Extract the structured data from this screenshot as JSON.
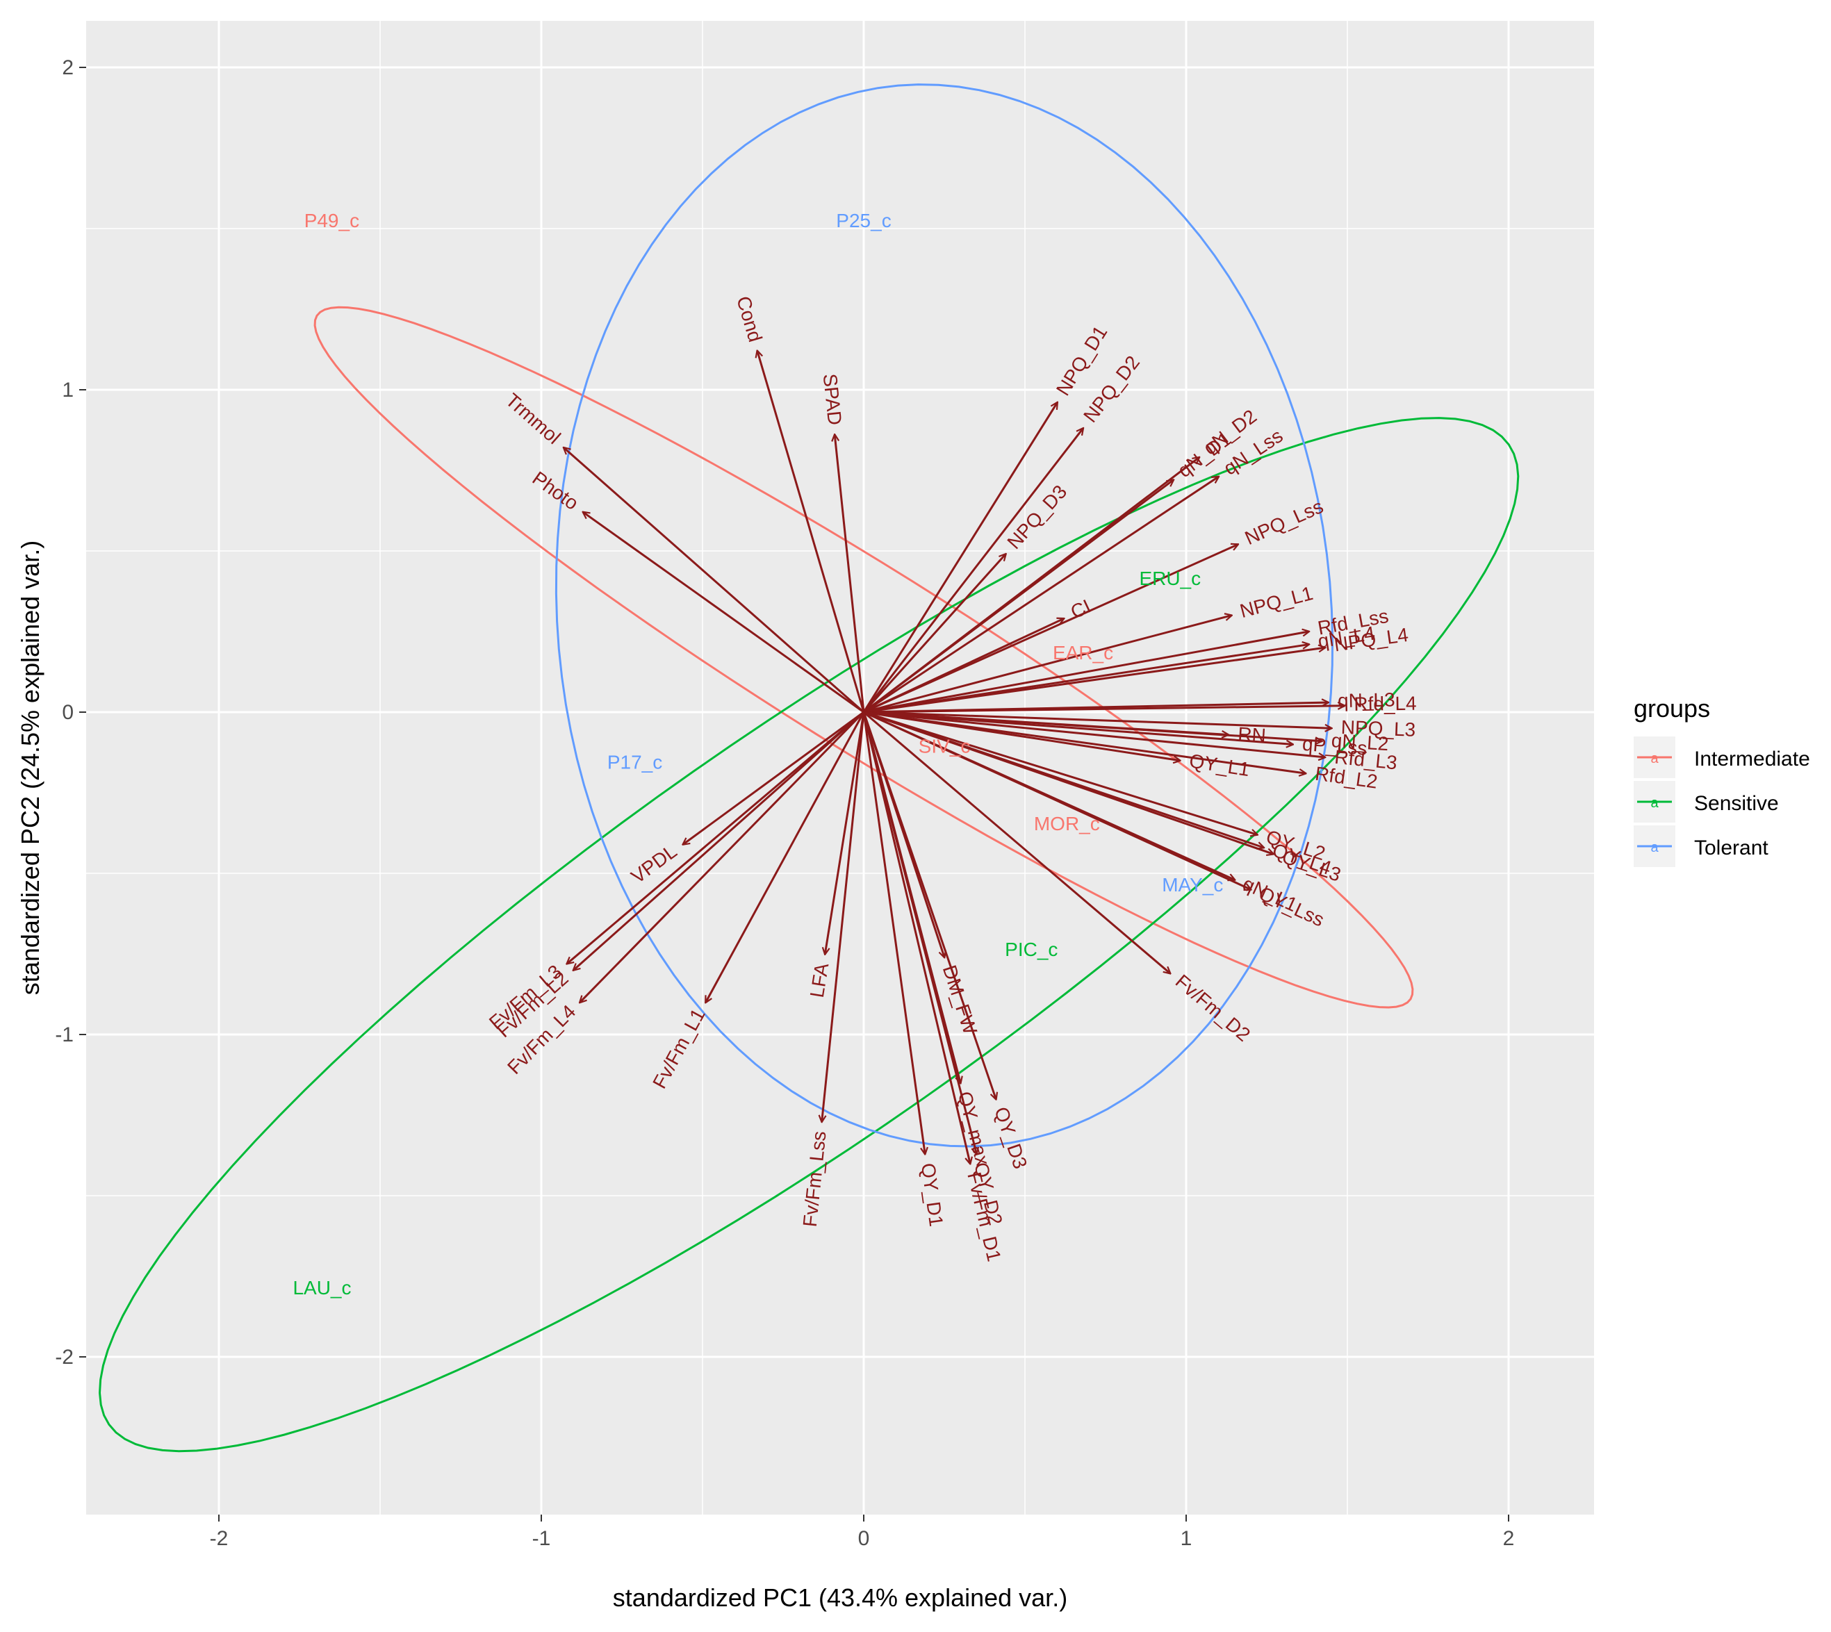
{
  "chart_data": {
    "type": "scatter",
    "title": "",
    "xlabel": "standardized PC1 (43.4% explained var.)",
    "ylabel": "standardized PC2 (24.5% explained var.)",
    "xlim": [
      -2.4,
      2.25
    ],
    "ylim": [
      -2.5,
      2.15
    ],
    "x_ticks": [
      -2,
      -1,
      0,
      1,
      2
    ],
    "y_ticks": [
      -2,
      -1,
      0,
      1,
      2
    ],
    "grid": true,
    "legend": {
      "title": "groups",
      "position": "right",
      "items": [
        {
          "name": "Intermediate",
          "color": "#F8766D"
        },
        {
          "name": "Sensitive",
          "color": "#00BA38"
        },
        {
          "name": "Tolerant",
          "color": "#619CFF"
        }
      ]
    },
    "colors": {
      "Intermediate": "#F8766D",
      "Sensitive": "#00BA38",
      "Tolerant": "#619CFF",
      "loading": "#8B1A1A",
      "panel": "#EBEBEB",
      "grid": "#FFFFFF"
    },
    "points": [
      {
        "label": "P49_c",
        "group": "Intermediate",
        "x": -1.65,
        "y": 1.52
      },
      {
        "label": "EAR_c",
        "group": "Intermediate",
        "x": 0.68,
        "y": 0.18
      },
      {
        "label": "SIV_c",
        "group": "Intermediate",
        "x": 0.25,
        "y": -0.11
      },
      {
        "label": "MOR_c",
        "group": "Intermediate",
        "x": 0.63,
        "y": -0.35
      },
      {
        "label": "ERU_c",
        "group": "Sensitive",
        "x": 0.95,
        "y": 0.41
      },
      {
        "label": "PIC_c",
        "group": "Sensitive",
        "x": 0.52,
        "y": -0.74
      },
      {
        "label": "LAU_c",
        "group": "Sensitive",
        "x": -1.68,
        "y": -1.79
      },
      {
        "label": "P25_c",
        "group": "Tolerant",
        "x": 0.0,
        "y": 1.52
      },
      {
        "label": "P17_c",
        "group": "Tolerant",
        "x": -0.71,
        "y": -0.16
      },
      {
        "label": "MAY_c",
        "group": "Tolerant",
        "x": 1.02,
        "y": -0.54
      }
    ],
    "ellipses": [
      {
        "group": "Intermediate",
        "cx": 0.0,
        "cy": 0.17,
        "rx": 2.0,
        "ry": 0.28,
        "angle_deg": -32
      },
      {
        "group": "Sensitive",
        "cx": -0.17,
        "cy": -0.69,
        "rx": 2.65,
        "ry": 0.62,
        "angle_deg": 35
      },
      {
        "group": "Tolerant",
        "cx": 0.25,
        "cy": 0.3,
        "rx": 1.2,
        "ry": 1.65,
        "angle_deg": 5
      }
    ],
    "loadings": [
      {
        "label": "Cond",
        "x": -0.33,
        "y": 1.12
      },
      {
        "label": "SPAD",
        "x": -0.09,
        "y": 0.86
      },
      {
        "label": "Trmmol",
        "x": -0.93,
        "y": 0.82
      },
      {
        "label": "Photo",
        "x": -0.87,
        "y": 0.62
      },
      {
        "label": "NPQ_D1",
        "x": 0.6,
        "y": 0.96
      },
      {
        "label": "NPQ_D2",
        "x": 0.68,
        "y": 0.88
      },
      {
        "label": "NPQ_D3",
        "x": 0.44,
        "y": 0.49
      },
      {
        "label": "qN_D2",
        "x": 1.04,
        "y": 0.79
      },
      {
        "label": "qN_D1",
        "x": 0.96,
        "y": 0.72
      },
      {
        "label": "qN_Lss",
        "x": 1.1,
        "y": 0.73
      },
      {
        "label": "NPQ_Lss",
        "x": 1.16,
        "y": 0.52
      },
      {
        "label": "CI",
        "x": 0.62,
        "y": 0.29
      },
      {
        "label": "NPQ_L1",
        "x": 1.14,
        "y": 0.3
      },
      {
        "label": "Rfd_Lss",
        "x": 1.38,
        "y": 0.25
      },
      {
        "label": "qN_L4",
        "x": 1.38,
        "y": 0.21
      },
      {
        "label": "NPQ_L4",
        "x": 1.43,
        "y": 0.2
      },
      {
        "label": "qN_L3",
        "x": 1.44,
        "y": 0.03
      },
      {
        "label": "Rfd_L4",
        "x": 1.49,
        "y": 0.02
      },
      {
        "label": "RN",
        "x": 1.13,
        "y": -0.07
      },
      {
        "label": "qP_Lss",
        "x": 1.33,
        "y": -0.1
      },
      {
        "label": "NPQ_L3",
        "x": 1.45,
        "y": -0.05
      },
      {
        "label": "qN_L2",
        "x": 1.42,
        "y": -0.09
      },
      {
        "label": "Rfd_L3",
        "x": 1.43,
        "y": -0.14
      },
      {
        "label": "Rfd_L2",
        "x": 1.37,
        "y": -0.19
      },
      {
        "label": "QY_L1",
        "x": 0.98,
        "y": -0.15
      },
      {
        "label": "QY_L2",
        "x": 1.22,
        "y": -0.38
      },
      {
        "label": "QY_L4",
        "x": 1.24,
        "y": -0.42
      },
      {
        "label": "QY_L3",
        "x": 1.27,
        "y": -0.44
      },
      {
        "label": "qN_L1",
        "x": 1.15,
        "y": -0.52
      },
      {
        "label": "QY_Lss",
        "x": 1.2,
        "y": -0.55
      },
      {
        "label": "Fv/Fm_D2",
        "x": 0.95,
        "y": -0.81
      },
      {
        "label": "VPDL",
        "x": -0.56,
        "y": -0.41
      },
      {
        "label": "Fv/Fm_L3",
        "x": -0.92,
        "y": -0.78
      },
      {
        "label": "Fv/Fm_L2",
        "x": -0.9,
        "y": -0.8
      },
      {
        "label": "Fv/Fm_L4",
        "x": -0.88,
        "y": -0.9
      },
      {
        "label": "Fv/Fm_L1",
        "x": -0.49,
        "y": -0.9
      },
      {
        "label": "LFA",
        "x": -0.12,
        "y": -0.75
      },
      {
        "label": "Fv/Fm_Lss",
        "x": -0.13,
        "y": -1.27
      },
      {
        "label": "DM_FW",
        "x": 0.25,
        "y": -0.76
      },
      {
        "label": "QY_D1",
        "x": 0.19,
        "y": -1.37
      },
      {
        "label": "QY_max",
        "x": 0.3,
        "y": -1.15
      },
      {
        "label": "QY_D3",
        "x": 0.41,
        "y": -1.2
      },
      {
        "label": "QY_D2",
        "x": 0.35,
        "y": -1.37
      },
      {
        "label": "Fv/Fm_D1",
        "x": 0.33,
        "y": -1.4
      }
    ]
  },
  "labels_layout_note": "loading label text drawn near arrow tips"
}
